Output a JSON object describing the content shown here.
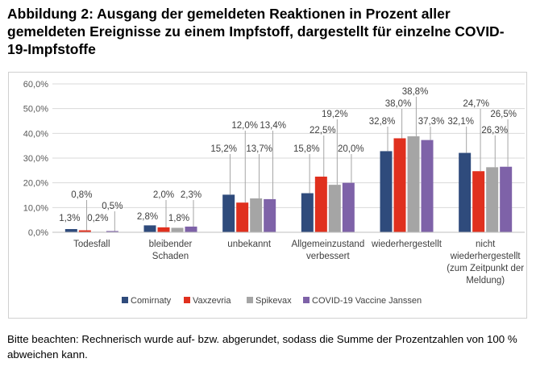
{
  "title": "Abbildung 2: Ausgang der gemeldeten Reaktionen in Prozent aller gemeldeten Ereignisse zu einem Impfstoff, dargestellt für einzelne COVID-19-Impfstoffe",
  "note": "Bitte beachten: Rechnerisch wurde auf- bzw. abgerundet, sodass die Summe der Prozentzahlen von 100 % abweichen kann.",
  "chart_data": {
    "type": "bar",
    "title": "Abbildung 2: Ausgang der gemeldeten Reaktionen in Prozent aller gemeldeten Ereignisse zu einem Impfstoff, dargestellt für einzelne COVID-19-Impfstoffe",
    "xlabel": "",
    "ylabel": "",
    "ylim": [
      0,
      60
    ],
    "yticks": [
      "0,0%",
      "10,0%",
      "20,0%",
      "30,0%",
      "40,0%",
      "50,0%",
      "60,0%"
    ],
    "grid": true,
    "legend_position": "bottom",
    "categories": [
      [
        "Todesfall"
      ],
      [
        "bleibender",
        "Schaden"
      ],
      [
        "unbekannt"
      ],
      [
        "Allgemeinzustand",
        "verbessert"
      ],
      [
        "wiederhergestellt"
      ],
      [
        "nicht",
        "wiederhergestellt",
        "(zum Zeitpunkt der",
        "Meldung)"
      ]
    ],
    "series": [
      {
        "name": "Comirnaty",
        "color": "#2f4b7c",
        "values": [
          1.3,
          2.8,
          15.2,
          15.8,
          32.8,
          32.1
        ],
        "labels": [
          "1,3%",
          "2,8%",
          "15,2%",
          "15,8%",
          "32,8%",
          "32,1%"
        ]
      },
      {
        "name": "Vaxzevria",
        "color": "#e0301e",
        "values": [
          0.8,
          2.0,
          12.0,
          22.5,
          38.0,
          24.7
        ],
        "labels": [
          "0,8%",
          "2,0%",
          "12,0%",
          "22,5%",
          "38,0%",
          "24,7%"
        ]
      },
      {
        "name": "Spikevax",
        "color": "#a5a5a5",
        "values": [
          0.2,
          1.8,
          13.7,
          19.2,
          38.8,
          26.3
        ],
        "labels": [
          "0,2%",
          "1,8%",
          "13,7%",
          "19,2%",
          "38,8%",
          "26,3%"
        ]
      },
      {
        "name": "COVID-19 Vaccine Janssen",
        "color": "#7e62a8",
        "values": [
          0.5,
          2.3,
          13.4,
          20.0,
          37.3,
          26.5
        ],
        "labels": [
          "0,5%",
          "2,3%",
          "13,4%",
          "20,0%",
          "37,3%",
          "26,5%"
        ]
      }
    ]
  }
}
